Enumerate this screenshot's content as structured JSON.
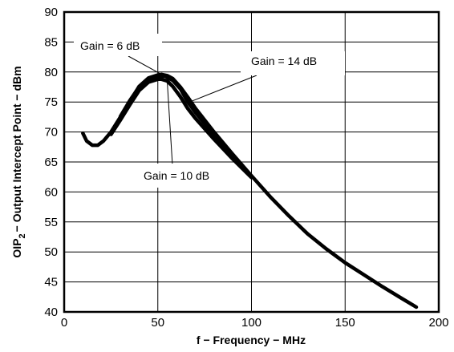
{
  "chart_data": {
    "type": "line",
    "title": "",
    "xlabel": "f − Frequency − MHz",
    "ylabel": "OIP2 − Output Intercept Point − dBm",
    "ylabel_parts": {
      "pre": "OIP",
      "sub": "2",
      "post": "− Output Intercept Point − dBm"
    },
    "xlim": [
      0,
      200
    ],
    "ylim": [
      40,
      90
    ],
    "xticks": [
      0,
      50,
      100,
      150,
      200
    ],
    "yticks": [
      40,
      45,
      50,
      55,
      60,
      65,
      70,
      75,
      80,
      85,
      90
    ],
    "grid": true,
    "series": [
      {
        "name": "Gain = 6 dB",
        "x": [
          10,
          12,
          15,
          18,
          21,
          25,
          30,
          35,
          40,
          45,
          50,
          52,
          55,
          58,
          62,
          66,
          70,
          80,
          90,
          100,
          110,
          120,
          130,
          140,
          150,
          160,
          170,
          180,
          188
        ],
        "y": [
          69.8,
          68.5,
          67.8,
          67.8,
          68.5,
          70,
          72.5,
          75,
          77.6,
          79,
          79.5,
          79.6,
          79.4,
          78.9,
          77.5,
          75.8,
          74.0,
          70.0,
          66.3,
          62.7,
          59.2,
          56.0,
          53.0,
          50.5,
          48.2,
          46.2,
          44.2,
          42.3,
          40.8
        ]
      },
      {
        "name": "Gain = 10 dB",
        "x": [
          25,
          30,
          35,
          40,
          45,
          50,
          52,
          55,
          58,
          62,
          66,
          70,
          80,
          90,
          100
        ],
        "y": [
          69.6,
          72,
          74.5,
          76.9,
          78.3,
          78.8,
          78.8,
          78.5,
          77.6,
          75.9,
          73.9,
          72.3,
          68.8,
          65.5,
          62.4
        ]
      },
      {
        "name": "Gain = 14 dB",
        "x": [
          30,
          35,
          40,
          45,
          50,
          54,
          58,
          62,
          66,
          70,
          80,
          90,
          100
        ],
        "y": [
          72.6,
          75.2,
          77.5,
          78.7,
          79.3,
          79.3,
          78.6,
          77.2,
          75.0,
          73.3,
          69.5,
          66.0,
          62.6
        ]
      }
    ],
    "annotations": [
      {
        "text": "Gain = 6 dB",
        "points_to_x": 52,
        "points_to_y": 79.6
      },
      {
        "text": "Gain = 14 dB",
        "points_to_x": 67,
        "points_to_y": 75
      },
      {
        "text": "Gain = 10 dB",
        "points_to_x": 55,
        "points_to_y": 78.5
      }
    ]
  }
}
